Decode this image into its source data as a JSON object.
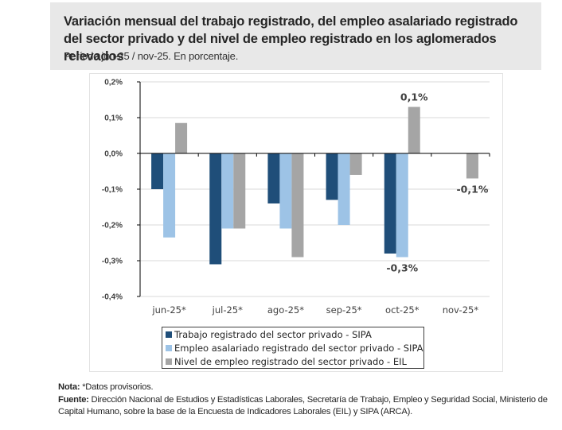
{
  "header": {
    "title": "Variación mensual del trabajo registrado, del empleo asalariado registrado del sector privado y del nivel de empleo registrado en los aglomerados relevados",
    "subtitle": "Período jun-25 / nov-25. En porcentaje."
  },
  "chart_data": {
    "type": "bar",
    "title": "Variación mensual del trabajo registrado, del empleo asalariado registrado del sector privado y del nivel de empleo registrado en los aglomerados relevados",
    "subtitle": "Período jun-25 / nov-25. En porcentaje.",
    "xlabel": "",
    "ylabel": "",
    "ylim": [
      -0.4,
      0.2
    ],
    "yticks": [
      0.2,
      0.1,
      0.0,
      -0.1,
      -0.2,
      -0.3,
      -0.4
    ],
    "ytick_labels": [
      "0,2%",
      "0,1%",
      "0,0%",
      "-0,1%",
      "-0,2%",
      "-0,3%",
      "-0,4%"
    ],
    "grid": true,
    "legend_position": "bottom",
    "categories": [
      "jun-25*",
      "jul-25*",
      "ago-25*",
      "sep-25*",
      "oct-25*",
      "nov-25*"
    ],
    "series": [
      {
        "name": "Trabajo registrado del sector privado - SIPA",
        "color": "#1f4e79",
        "values": [
          -0.1,
          -0.31,
          -0.14,
          -0.13,
          -0.28,
          null
        ]
      },
      {
        "name": "Empleo asalariado registrado del sector privado - SIPA",
        "color": "#9dc3e6",
        "values": [
          -0.235,
          -0.21,
          -0.21,
          -0.2,
          -0.29,
          null
        ]
      },
      {
        "name": "Nivel de empleo registrado del sector privado - EIL",
        "color": "#a5a5a5",
        "values": [
          0.085,
          -0.21,
          -0.29,
          -0.06,
          0.13,
          -0.07
        ]
      }
    ],
    "annotations": [
      {
        "category": "oct-25*",
        "series": 2,
        "text": "0,1%"
      },
      {
        "category": "oct-25*",
        "series": 1,
        "text": "-0,3%"
      },
      {
        "category": "nov-25*",
        "series": 2,
        "text": "-0,1%"
      }
    ]
  },
  "notes": {
    "nota_label": "Nota:",
    "nota_text": " *Datos provisorios.",
    "fuente_label": "Fuente:",
    "fuente_text": " Dirección Nacional de Estudios y Estadísticas Laborales, Secretaría de Trabajo, Empleo y Seguridad Social, Ministerio de Capital Humano, sobre la base de la Encuesta de Indicadores Laborales (EIL) y SIPA (ARCA)."
  }
}
